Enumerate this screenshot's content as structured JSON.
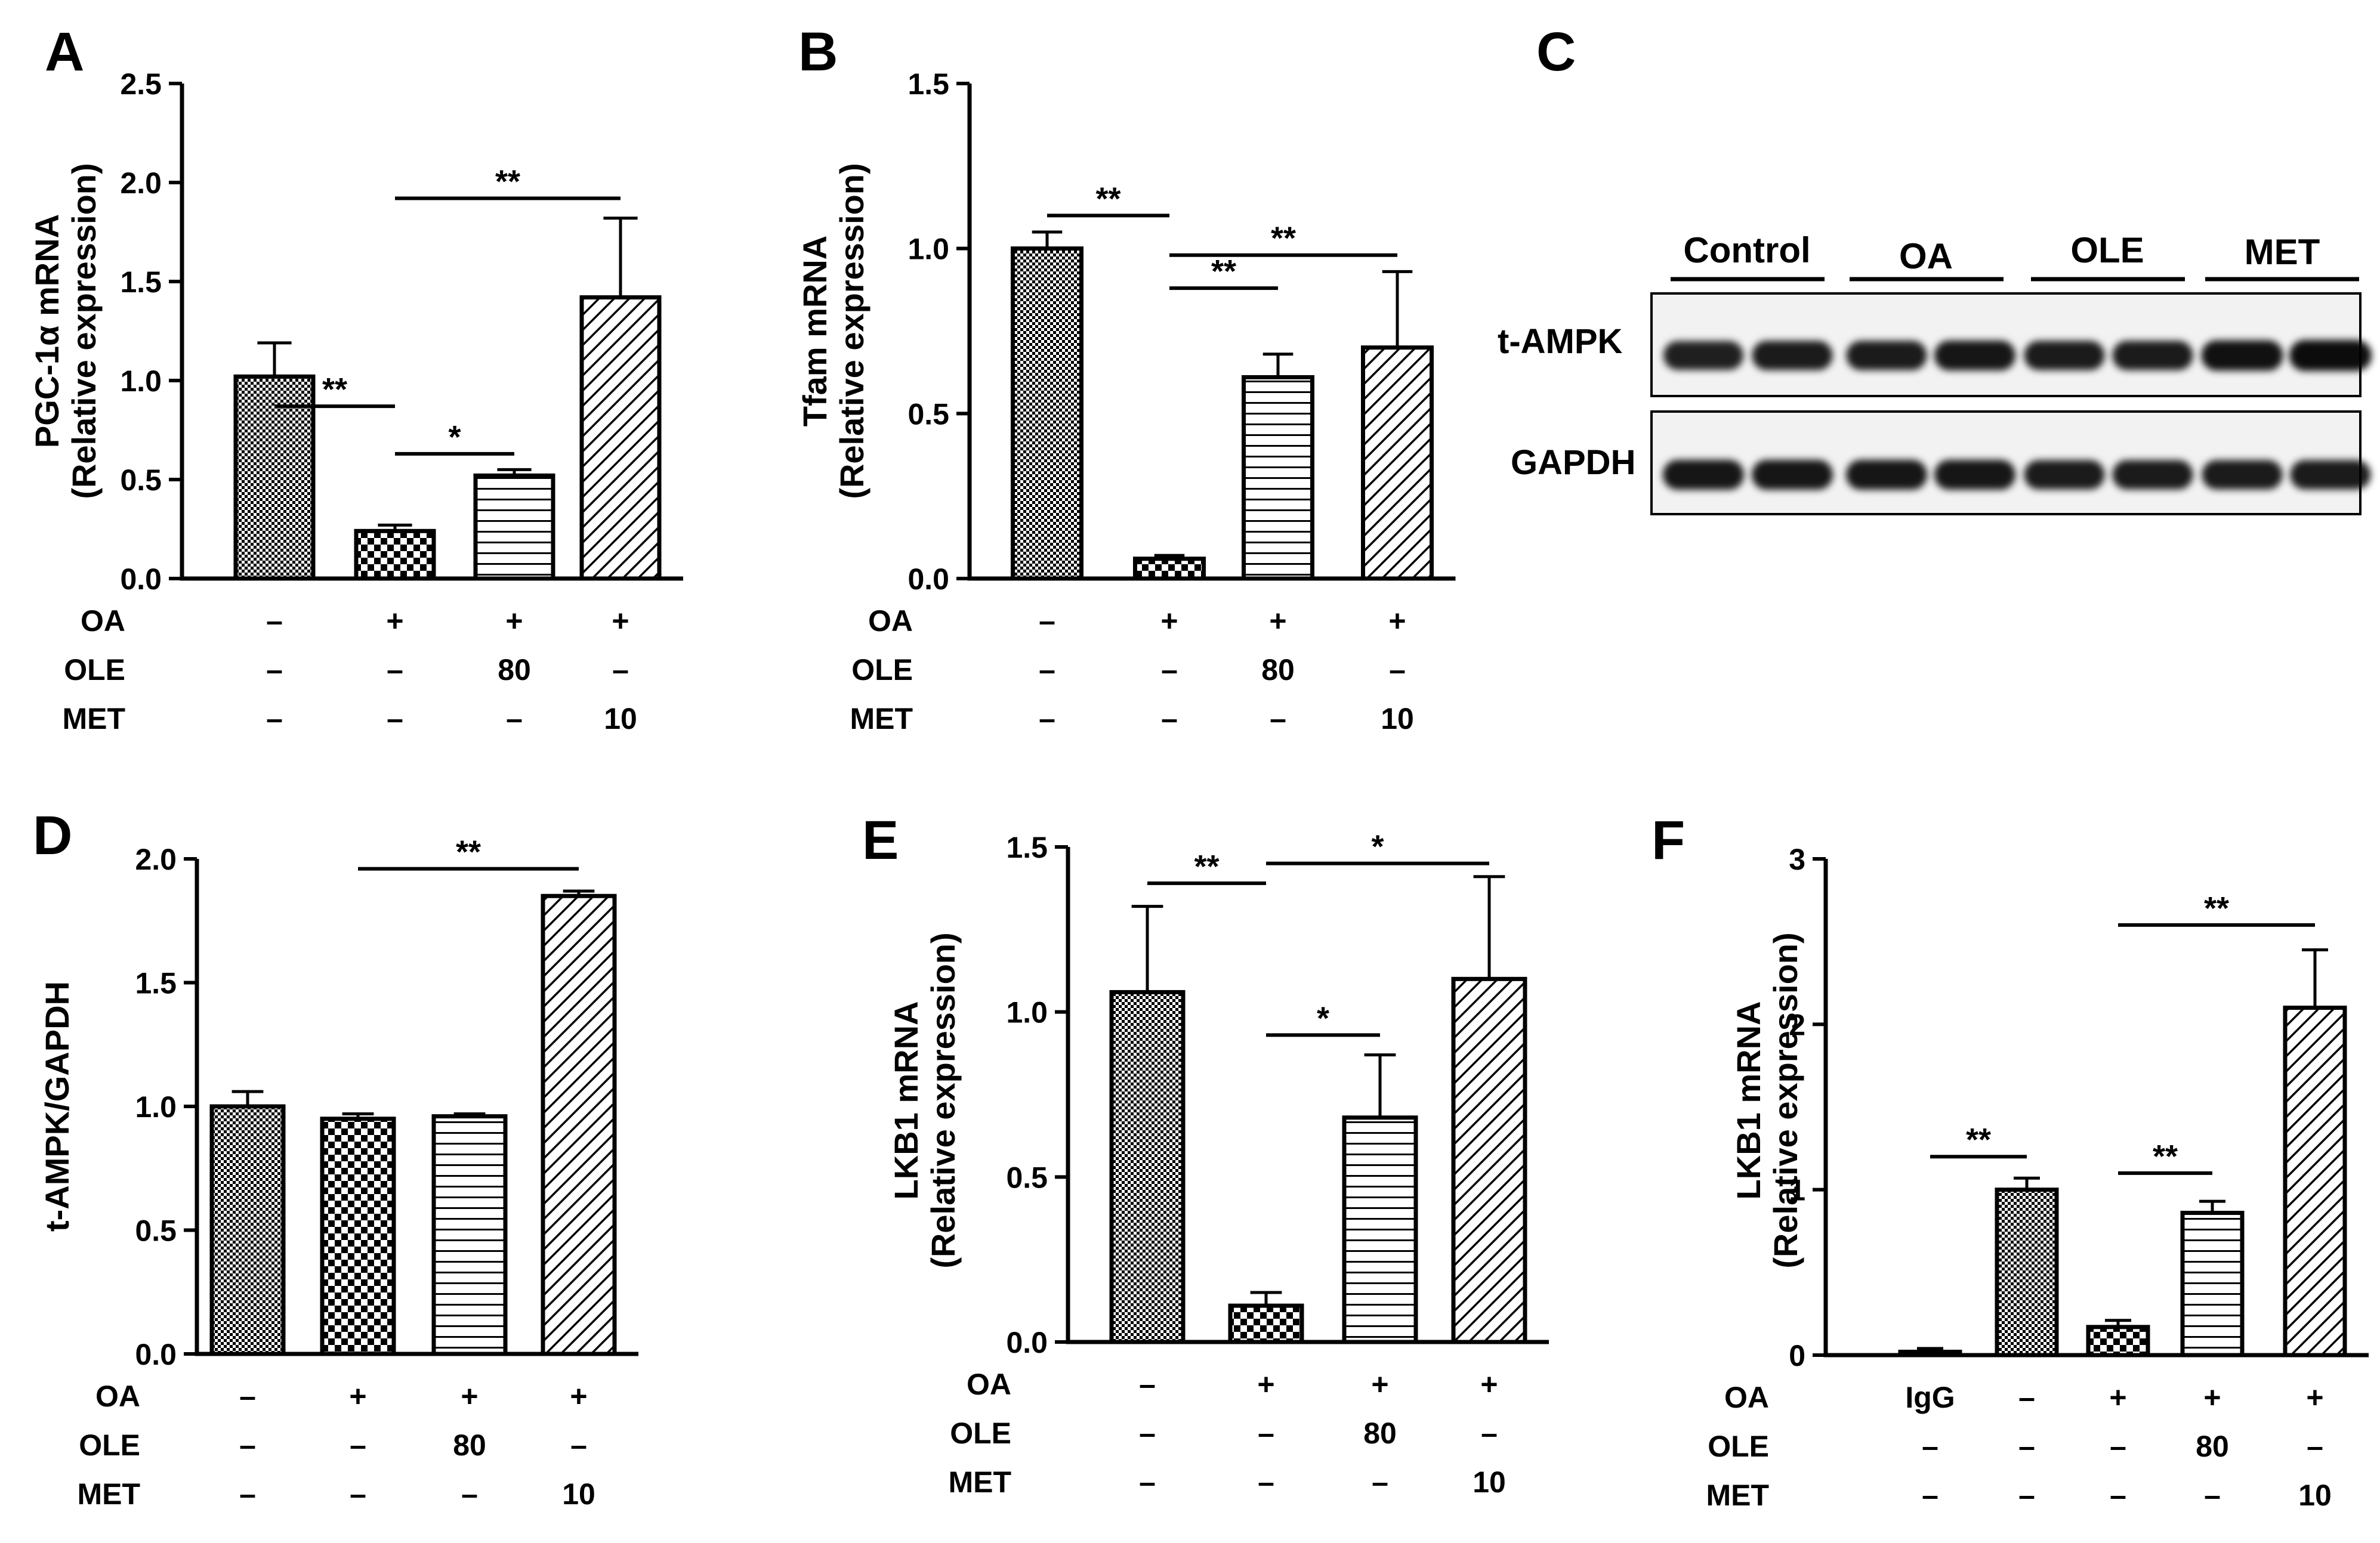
{
  "figure_type": "multi-panel bar chart with western blot",
  "chart_data": [
    {
      "type": "bar",
      "panel_label": "A",
      "ylabel": "PGC-1α mRNA",
      "ylabel2": "(Relative expression)",
      "ylim": [
        0,
        2.5
      ],
      "yticks": [
        "0.0",
        "0.5",
        "1.0",
        "1.5",
        "2.0",
        "2.5"
      ],
      "ytick_values": [
        0,
        0.5,
        1.0,
        1.5,
        2.0,
        2.5
      ],
      "categories": [
        "Control",
        "OA",
        "OA+OLE",
        "OA+MET"
      ],
      "values": [
        1.02,
        0.24,
        0.52,
        1.42
      ],
      "errors": [
        0.17,
        0.03,
        0.03,
        0.4
      ],
      "patterns": [
        "fine-check",
        "checker",
        "hlines",
        "diag"
      ],
      "treatment_rows": [
        {
          "label": "OA",
          "values": [
            "–",
            "+",
            "+",
            "+"
          ]
        },
        {
          "label": "OLE",
          "values": [
            "–",
            "–",
            "80",
            "–"
          ]
        },
        {
          "label": "MET",
          "values": [
            "–",
            "–",
            "–",
            "10"
          ]
        }
      ],
      "significance": [
        {
          "from": 0,
          "to": 1,
          "level": 0.87,
          "text": "**"
        },
        {
          "from": 1,
          "to": 2,
          "level": 0.63,
          "text": "*"
        },
        {
          "from": 1,
          "to": 3,
          "level": 1.92,
          "text": "**"
        }
      ]
    },
    {
      "type": "bar",
      "panel_label": "B",
      "ylabel": "Tfam mRNA",
      "ylabel2": "(Relative expression)",
      "ylim": [
        0,
        1.5
      ],
      "yticks": [
        "0.0",
        "0.5",
        "1.0",
        "1.5"
      ],
      "ytick_values": [
        0,
        0.5,
        1.0,
        1.5
      ],
      "categories": [
        "Control",
        "OA",
        "OA+OLE",
        "OA+MET"
      ],
      "values": [
        1.0,
        0.06,
        0.61,
        0.7
      ],
      "errors": [
        0.05,
        0.01,
        0.07,
        0.23
      ],
      "patterns": [
        "fine-check",
        "checker",
        "hlines",
        "diag"
      ],
      "treatment_rows": [
        {
          "label": "OA",
          "values": [
            "–",
            "+",
            "+",
            "+"
          ]
        },
        {
          "label": "OLE",
          "values": [
            "–",
            "–",
            "80",
            "–"
          ]
        },
        {
          "label": "MET",
          "values": [
            "–",
            "–",
            "–",
            "10"
          ]
        }
      ],
      "significance": [
        {
          "from": 0,
          "to": 1,
          "level": 1.1,
          "text": "**"
        },
        {
          "from": 2,
          "to": 1,
          "level": 0.88,
          "text": "**"
        },
        {
          "from": 1,
          "to": 3,
          "level": 0.98,
          "text": "**"
        }
      ]
    },
    {
      "type": "bar",
      "panel_label": "D",
      "ylabel": "t-AMPK/GAPDH",
      "ylabel2": "",
      "ylim": [
        0,
        2.0
      ],
      "yticks": [
        "0.0",
        "0.5",
        "1.0",
        "1.5",
        "2.0"
      ],
      "ytick_values": [
        0,
        0.5,
        1.0,
        1.5,
        2.0
      ],
      "categories": [
        "Control",
        "OA",
        "OA+OLE",
        "OA+MET"
      ],
      "values": [
        1.0,
        0.95,
        0.96,
        1.85
      ],
      "errors": [
        0.06,
        0.02,
        0.01,
        0.02
      ],
      "patterns": [
        "fine-check",
        "checker",
        "hlines",
        "diag"
      ],
      "treatment_rows": [
        {
          "label": "OA",
          "values": [
            "–",
            "+",
            "+",
            "+"
          ]
        },
        {
          "label": "OLE",
          "values": [
            "–",
            "–",
            "80",
            "–"
          ]
        },
        {
          "label": "MET",
          "values": [
            "–",
            "–",
            "–",
            "10"
          ]
        }
      ],
      "significance": [
        {
          "from": 1,
          "to": 3,
          "level": 1.96,
          "text": "**"
        }
      ]
    },
    {
      "type": "bar",
      "panel_label": "E",
      "ylabel": "LKB1 mRNA",
      "ylabel2": "(Relative expression)",
      "ylim": [
        0,
        1.5
      ],
      "yticks": [
        "0.0",
        "0.5",
        "1.0",
        "1.5"
      ],
      "ytick_values": [
        0,
        0.5,
        1.0,
        1.5
      ],
      "categories": [
        "Control",
        "OA",
        "OA+OLE",
        "OA+MET"
      ],
      "values": [
        1.06,
        0.11,
        0.68,
        1.1
      ],
      "errors": [
        0.26,
        0.04,
        0.19,
        0.31
      ],
      "patterns": [
        "fine-check",
        "checker",
        "hlines",
        "diag"
      ],
      "treatment_rows": [
        {
          "label": "OA",
          "values": [
            "–",
            "+",
            "+",
            "+"
          ]
        },
        {
          "label": "OLE",
          "values": [
            "–",
            "–",
            "80",
            "–"
          ]
        },
        {
          "label": "MET",
          "values": [
            "–",
            "–",
            "–",
            "10"
          ]
        }
      ],
      "significance": [
        {
          "from": 0,
          "to": 1,
          "level": 1.39,
          "text": "**"
        },
        {
          "from": 2,
          "to": 1,
          "level": 0.93,
          "text": "*"
        },
        {
          "from": 1,
          "to": 3,
          "level": 1.45,
          "text": "*"
        }
      ]
    },
    {
      "type": "bar",
      "panel_label": "F",
      "ylabel": "LKB1 mRNA",
      "ylabel2": "(Relative expression)",
      "ylim": [
        0,
        3
      ],
      "yticks": [
        "0",
        "1",
        "2",
        "3"
      ],
      "ytick_values": [
        0,
        1,
        2,
        3
      ],
      "categories": [
        "IgG",
        "Control",
        "OA",
        "OA+OLE",
        "OA+MET"
      ],
      "values": [
        0.02,
        1.0,
        0.17,
        0.86,
        2.1
      ],
      "errors": [
        0.02,
        0.07,
        0.04,
        0.07,
        0.35
      ],
      "patterns": [
        "plain",
        "fine-check",
        "checker",
        "hlines",
        "diag"
      ],
      "treatment_rows": [
        {
          "label": "OA",
          "values": [
            "IgG",
            "–",
            "+",
            "+",
            "+"
          ]
        },
        {
          "label": "OLE",
          "values": [
            "–",
            "–",
            "–",
            "80",
            "–"
          ]
        },
        {
          "label": "MET",
          "values": [
            "–",
            "–",
            "–",
            "–",
            "10"
          ]
        }
      ],
      "significance": [
        {
          "from": 0,
          "to": 1,
          "level": 1.2,
          "text": "**"
        },
        {
          "from": 2,
          "to": 3,
          "level": 1.1,
          "text": "**"
        },
        {
          "from": 2,
          "to": 4,
          "level": 2.6,
          "text": "**"
        }
      ]
    }
  ],
  "blot": {
    "panel_label": "C",
    "groups": [
      "Control",
      "OA",
      "OLE",
      "MET"
    ],
    "bands": [
      {
        "label": "t-AMPK",
        "intensities": [
          0.8,
          0.85,
          0.85,
          0.9,
          0.85,
          0.85,
          0.95,
          1.0
        ]
      },
      {
        "label": "GAPDH",
        "intensities": [
          0.9,
          0.9,
          0.9,
          0.9,
          0.85,
          0.85,
          0.85,
          0.85
        ]
      }
    ]
  }
}
